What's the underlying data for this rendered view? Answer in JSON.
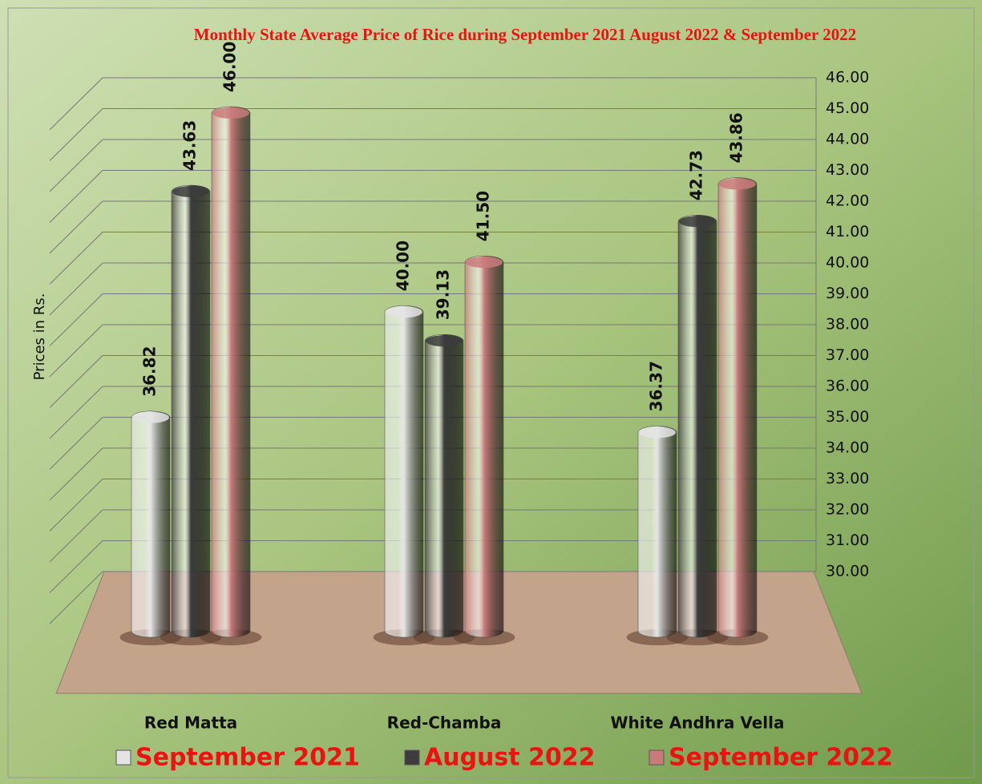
{
  "chart_data": {
    "type": "bar3d",
    "title": "Monthly State Average Price of Rice during  September 2021  August 2022  &  September 2022",
    "y_label": "Prices in Rs.",
    "categories": [
      "Red Matta",
      "Red-Chamba",
      "White Andhra Vella"
    ],
    "series": [
      {
        "name": "September 2021",
        "color": "#e4e4e4",
        "values": [
          36.82,
          40.0,
          36.37
        ],
        "value_labels": [
          "36.82",
          "40.00",
          "36.37"
        ]
      },
      {
        "name": "August 2022",
        "color": "#3c3c3c",
        "values": [
          43.63,
          39.13,
          42.73
        ],
        "value_labels": [
          "43.63",
          "39.13",
          "42.73"
        ]
      },
      {
        "name": "September 2022",
        "color": "#c97b7b",
        "values": [
          46.0,
          41.5,
          43.86
        ],
        "value_labels": [
          "46.00",
          "41.50",
          "43.86"
        ]
      }
    ],
    "ylim": [
      30,
      46
    ],
    "yticks": [
      {
        "value": 30,
        "label": "30.00"
      },
      {
        "value": 31,
        "label": "31.00"
      },
      {
        "value": 32,
        "label": "32.00"
      },
      {
        "value": 33,
        "label": "33.00"
      },
      {
        "value": 34,
        "label": "34.00"
      },
      {
        "value": 35,
        "label": "35.00"
      },
      {
        "value": 36,
        "label": "36.00"
      },
      {
        "value": 37,
        "label": "37.00"
      },
      {
        "value": 38,
        "label": "38.00"
      },
      {
        "value": 39,
        "label": "39.00"
      },
      {
        "value": 40,
        "label": "40.00"
      },
      {
        "value": 41,
        "label": "41.00"
      },
      {
        "value": 42,
        "label": "42.00"
      },
      {
        "value": 43,
        "label": "43.00"
      },
      {
        "value": 44,
        "label": "44.00"
      },
      {
        "value": 45,
        "label": "45.00"
      },
      {
        "value": 46,
        "label": "46.00"
      }
    ],
    "grid": true
  }
}
